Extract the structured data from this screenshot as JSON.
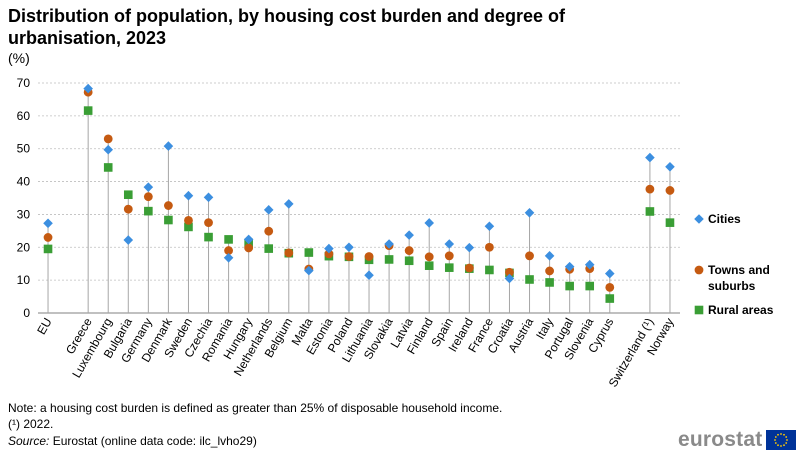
{
  "header": {
    "title": "Distribution of population, by housing cost burden and degree of urbanisation, 2023",
    "unit": "(%)"
  },
  "notes": {
    "note1": "Note: a housing cost burden is defined as greater than 25% of disposable household income.",
    "note2": "(¹) 2022.",
    "source_label": "Source:",
    "source_text": " Eurostat (online data code: ilc_lvho29)"
  },
  "logo": {
    "text": "eurostat"
  },
  "colors": {
    "cities": "#3C8FE0",
    "towns": "#C55A11",
    "rural": "#3A9E35",
    "stem": "#A6A6A6",
    "grid": "#BFBFBF",
    "flag_blue": "#003399",
    "flag_star": "#FFCC00"
  },
  "chart_data": {
    "type": "scatter",
    "title": "Distribution of population, by housing cost burden and degree of urbanisation, 2023",
    "ylabel": "(%)",
    "ylim": [
      0,
      70
    ],
    "yticks": [
      0,
      10,
      20,
      30,
      40,
      50,
      60,
      70
    ],
    "grid": true,
    "legend_position": "right",
    "categories": [
      "EU",
      "",
      "Greece",
      "Luxembourg",
      "Bulgaria",
      "Germany",
      "Denmark",
      "Sweden",
      "Czechia",
      "Romania",
      "Hungary",
      "Netherlands",
      "Belgium",
      "Malta",
      "Estonia",
      "Poland",
      "Lithuania",
      "Slovakia",
      "Latvia",
      "Finland",
      "Spain",
      "Ireland",
      "France",
      "Croatia",
      "Austria",
      "Italy",
      "Portugal",
      "Slovenia",
      "Cyprus",
      "",
      "Switzerland (¹)",
      "Norway"
    ],
    "series": [
      {
        "name": "Cities",
        "marker": "diamond",
        "values": [
          27.3,
          null,
          68.3,
          49.7,
          22.2,
          38.3,
          50.8,
          35.7,
          35.2,
          16.8,
          22.4,
          31.4,
          33.2,
          12.9,
          19.6,
          20.0,
          11.5,
          21.0,
          23.7,
          27.4,
          21.0,
          19.9,
          26.4,
          10.5,
          30.5,
          17.4,
          14.1,
          14.7,
          12.0,
          null,
          47.3,
          44.5
        ]
      },
      {
        "name": "Towns and suburbs",
        "marker": "circle",
        "values": [
          23.0,
          null,
          67.2,
          53.0,
          31.6,
          35.4,
          32.7,
          28.2,
          27.5,
          19.0,
          19.8,
          24.9,
          18.3,
          13.4,
          18.0,
          17.2,
          17.2,
          20.5,
          19.0,
          17.1,
          17.4,
          13.7,
          20.0,
          12.4,
          17.4,
          12.8,
          13.3,
          13.5,
          7.8,
          null,
          37.7,
          37.3
        ]
      },
      {
        "name": "Rural areas",
        "marker": "square",
        "values": [
          19.5,
          null,
          61.6,
          44.3,
          36.0,
          31.0,
          28.3,
          26.2,
          23.1,
          22.4,
          21.3,
          19.6,
          18.2,
          18.4,
          17.3,
          17.1,
          16.2,
          16.3,
          15.9,
          14.4,
          13.8,
          13.5,
          13.1,
          12.2,
          10.2,
          9.3,
          8.2,
          8.2,
          4.4,
          null,
          30.9,
          27.5
        ]
      }
    ]
  }
}
